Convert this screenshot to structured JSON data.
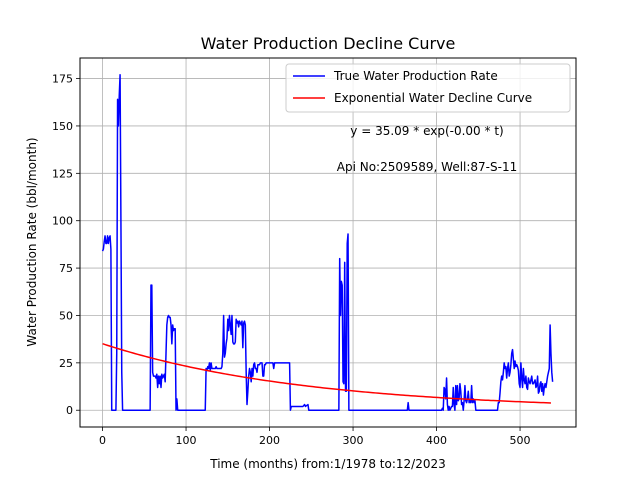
{
  "chart_data": {
    "type": "line",
    "title": "Water Production Decline Curve",
    "xlabel": "Time (months) from:1/1978 to:12/2023",
    "ylabel": "Water Production Rate (bbl/month)",
    "xlim": [
      -27,
      567
    ],
    "ylim": [
      -8.85,
      185.85
    ],
    "xticks": [
      0,
      100,
      200,
      300,
      400,
      500
    ],
    "yticks": [
      0,
      25,
      50,
      75,
      100,
      125,
      150,
      175
    ],
    "grid": true,
    "legend_position": "top-right",
    "annotations": [
      "y = 35.09 * exp(-0.00 * t)",
      "Api No:2509589, Well:87-S-11"
    ],
    "series": [
      {
        "name": "True Water Production Rate",
        "color": "#0000ff",
        "kind": "line",
        "points": [
          [
            0,
            84
          ],
          [
            1,
            85
          ],
          [
            2,
            89
          ],
          [
            3,
            92
          ],
          [
            4,
            88
          ],
          [
            5,
            88
          ],
          [
            6,
            92
          ],
          [
            7,
            88
          ],
          [
            8,
            91
          ],
          [
            9,
            92
          ],
          [
            10,
            85
          ],
          [
            11,
            0
          ],
          [
            12,
            0
          ],
          [
            13,
            0
          ],
          [
            14,
            0
          ],
          [
            15,
            0
          ],
          [
            16,
            0
          ],
          [
            17,
            30
          ],
          [
            18,
            164
          ],
          [
            19,
            150
          ],
          [
            20,
            166
          ],
          [
            21,
            177
          ],
          [
            22,
            100
          ],
          [
            23,
            20
          ],
          [
            24,
            0
          ],
          [
            30,
            0
          ],
          [
            40,
            0
          ],
          [
            50,
            0
          ],
          [
            57,
            0
          ],
          [
            58,
            66
          ],
          [
            59,
            66
          ],
          [
            60,
            20
          ],
          [
            61,
            18
          ],
          [
            62,
            18
          ],
          [
            63,
            18
          ],
          [
            64,
            17
          ],
          [
            65,
            19
          ],
          [
            66,
            12
          ],
          [
            67,
            18
          ],
          [
            68,
            14
          ],
          [
            69,
            18
          ],
          [
            70,
            12
          ],
          [
            71,
            19
          ],
          [
            72,
            17
          ],
          [
            73,
            18
          ],
          [
            74,
            19
          ],
          [
            75,
            15
          ],
          [
            76,
            30
          ],
          [
            77,
            45
          ],
          [
            78,
            49
          ],
          [
            79,
            50
          ],
          [
            80,
            49
          ],
          [
            81,
            49
          ],
          [
            82,
            45
          ],
          [
            83,
            35
          ],
          [
            84,
            45
          ],
          [
            85,
            42
          ],
          [
            86,
            43
          ],
          [
            87,
            43
          ],
          [
            88,
            0
          ],
          [
            89,
            6
          ],
          [
            90,
            0
          ],
          [
            100,
            0
          ],
          [
            110,
            0
          ],
          [
            120,
            0
          ],
          [
            123,
            0
          ],
          [
            124,
            22
          ],
          [
            125,
            21
          ],
          [
            126,
            23
          ],
          [
            127,
            22
          ],
          [
            128,
            25
          ],
          [
            129,
            21
          ],
          [
            130,
            25
          ],
          [
            131,
            22
          ],
          [
            132,
            22
          ],
          [
            133,
            22
          ],
          [
            134,
            22
          ],
          [
            135,
            22
          ],
          [
            136,
            23
          ],
          [
            137,
            22
          ],
          [
            138,
            22
          ],
          [
            139,
            22
          ],
          [
            140,
            22
          ],
          [
            141,
            22
          ],
          [
            142,
            22
          ],
          [
            143,
            23
          ],
          [
            144,
            30
          ],
          [
            145,
            50
          ],
          [
            146,
            28
          ],
          [
            147,
            30
          ],
          [
            148,
            35
          ],
          [
            149,
            38
          ],
          [
            150,
            48
          ],
          [
            151,
            42
          ],
          [
            152,
            50
          ],
          [
            153,
            45
          ],
          [
            154,
            40
          ],
          [
            155,
            50
          ],
          [
            156,
            36
          ],
          [
            157,
            35
          ],
          [
            158,
            35
          ],
          [
            159,
            36
          ],
          [
            160,
            48
          ],
          [
            161,
            46
          ],
          [
            162,
            47
          ],
          [
            163,
            44
          ],
          [
            164,
            47
          ],
          [
            165,
            46
          ],
          [
            166,
            45
          ],
          [
            167,
            47
          ],
          [
            168,
            33
          ],
          [
            169,
            46
          ],
          [
            170,
            47
          ],
          [
            171,
            45
          ],
          [
            172,
            20
          ],
          [
            173,
            3
          ],
          [
            174,
            10
          ],
          [
            175,
            18
          ],
          [
            176,
            22
          ],
          [
            177,
            20
          ],
          [
            178,
            15
          ],
          [
            179,
            22
          ],
          [
            180,
            18
          ],
          [
            181,
            24
          ],
          [
            182,
            25
          ],
          [
            183,
            22
          ],
          [
            184,
            22
          ],
          [
            185,
            20
          ],
          [
            186,
            24
          ],
          [
            187,
            24
          ],
          [
            188,
            24
          ],
          [
            189,
            25
          ],
          [
            190,
            25
          ],
          [
            191,
            25
          ],
          [
            192,
            18
          ],
          [
            193,
            18
          ],
          [
            194,
            24
          ],
          [
            195,
            24
          ],
          [
            196,
            25
          ],
          [
            200,
            25
          ],
          [
            204,
            25
          ],
          [
            205,
            22
          ],
          [
            206,
            25
          ],
          [
            210,
            25
          ],
          [
            215,
            25
          ],
          [
            220,
            25
          ],
          [
            223,
            25
          ],
          [
            224,
            25
          ],
          [
            225,
            0
          ],
          [
            226,
            2
          ],
          [
            230,
            2
          ],
          [
            235,
            2
          ],
          [
            240,
            2
          ],
          [
            242,
            3
          ],
          [
            243,
            2
          ],
          [
            246,
            3
          ],
          [
            247,
            0
          ],
          [
            250,
            0
          ],
          [
            255,
            0
          ],
          [
            260,
            0
          ],
          [
            265,
            0
          ],
          [
            270,
            0
          ],
          [
            275,
            0
          ],
          [
            280,
            0
          ],
          [
            283,
            0
          ],
          [
            284,
            80
          ],
          [
            285,
            50
          ],
          [
            286,
            68
          ],
          [
            287,
            66
          ],
          [
            288,
            15
          ],
          [
            289,
            14
          ],
          [
            290,
            78
          ],
          [
            291,
            10
          ],
          [
            292,
            10
          ],
          [
            293,
            88
          ],
          [
            294,
            93
          ],
          [
            295,
            0
          ],
          [
            300,
            0
          ],
          [
            320,
            0
          ],
          [
            340,
            0
          ],
          [
            360,
            0
          ],
          [
            365,
            0
          ],
          [
            366,
            4
          ],
          [
            367,
            0
          ],
          [
            380,
            0
          ],
          [
            400,
            0
          ],
          [
            405,
            0
          ],
          [
            406,
            0
          ],
          [
            407,
            1
          ],
          [
            408,
            0
          ],
          [
            409,
            12
          ],
          [
            410,
            11
          ],
          [
            411,
            6
          ],
          [
            412,
            17
          ],
          [
            413,
            3
          ],
          [
            414,
            0
          ],
          [
            415,
            2
          ],
          [
            416,
            0
          ],
          [
            417,
            1
          ],
          [
            418,
            2
          ],
          [
            419,
            2
          ],
          [
            420,
            12
          ],
          [
            421,
            3
          ],
          [
            422,
            0
          ],
          [
            423,
            13
          ],
          [
            424,
            3
          ],
          [
            425,
            13
          ],
          [
            426,
            5
          ],
          [
            427,
            6
          ],
          [
            428,
            14
          ],
          [
            429,
            10
          ],
          [
            430,
            3
          ],
          [
            431,
            4
          ],
          [
            432,
            0
          ],
          [
            433,
            5
          ],
          [
            434,
            13
          ],
          [
            435,
            5
          ],
          [
            436,
            4
          ],
          [
            437,
            6
          ],
          [
            438,
            10
          ],
          [
            439,
            4
          ],
          [
            440,
            5
          ],
          [
            441,
            4
          ],
          [
            442,
            13
          ],
          [
            443,
            4
          ],
          [
            444,
            6
          ],
          [
            445,
            4
          ],
          [
            446,
            5
          ],
          [
            447,
            0
          ],
          [
            450,
            0
          ],
          [
            460,
            0
          ],
          [
            470,
            0
          ],
          [
            473,
            0
          ],
          [
            474,
            4
          ],
          [
            475,
            4
          ],
          [
            476,
            9
          ],
          [
            477,
            15
          ],
          [
            478,
            18
          ],
          [
            479,
            16
          ],
          [
            480,
            20
          ],
          [
            481,
            25
          ],
          [
            482,
            22
          ],
          [
            483,
            23
          ],
          [
            484,
            17
          ],
          [
            485,
            22
          ],
          [
            486,
            25
          ],
          [
            487,
            18
          ],
          [
            488,
            20
          ],
          [
            489,
            24
          ],
          [
            490,
            30
          ],
          [
            491,
            32
          ],
          [
            492,
            27
          ],
          [
            493,
            22
          ],
          [
            494,
            26
          ],
          [
            495,
            23
          ],
          [
            496,
            24
          ],
          [
            497,
            23
          ],
          [
            498,
            21
          ],
          [
            499,
            14
          ],
          [
            500,
            12
          ],
          [
            501,
            25
          ],
          [
            502,
            17
          ],
          [
            503,
            12
          ],
          [
            504,
            22
          ],
          [
            505,
            16
          ],
          [
            506,
            14
          ],
          [
            507,
            18
          ],
          [
            508,
            12
          ],
          [
            509,
            11
          ],
          [
            510,
            17
          ],
          [
            511,
            15
          ],
          [
            512,
            14
          ],
          [
            513,
            16
          ],
          [
            514,
            18
          ],
          [
            515,
            14
          ],
          [
            516,
            14
          ],
          [
            517,
            15
          ],
          [
            518,
            16
          ],
          [
            519,
            12
          ],
          [
            520,
            13
          ],
          [
            521,
            18
          ],
          [
            522,
            9
          ],
          [
            523,
            10
          ],
          [
            524,
            14
          ],
          [
            525,
            15
          ],
          [
            526,
            10
          ],
          [
            527,
            14
          ],
          [
            528,
            8
          ],
          [
            529,
            12
          ],
          [
            530,
            14
          ],
          [
            531,
            12
          ],
          [
            532,
            15
          ],
          [
            533,
            18
          ],
          [
            534,
            20
          ],
          [
            535,
            22
          ],
          [
            536,
            45
          ],
          [
            537,
            30
          ],
          [
            538,
            20
          ],
          [
            539,
            15
          ]
        ]
      },
      {
        "name": "Exponential Water Decline Curve",
        "color": "#ff0000",
        "kind": "exponential",
        "a": 35.09,
        "b": 0.00412,
        "x_range": [
          0,
          539
        ]
      }
    ]
  }
}
